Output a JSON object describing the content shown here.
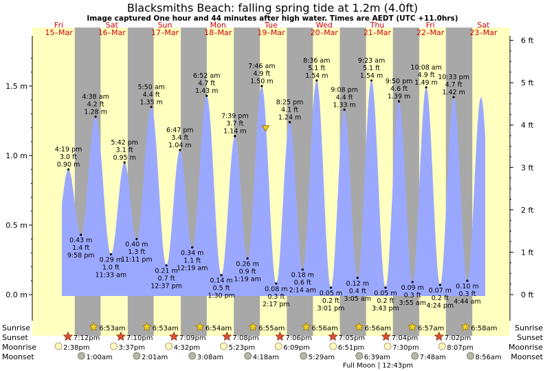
{
  "title": "Blacksmiths Beach: falling  spring tide at 1.2m (4.0ft)",
  "subtitle": "Image captured One hour and 44 minutes after high water. Times are AEDT (UTC +11.0hrs)",
  "colors": {
    "day_bg": "#ffffc0",
    "night_bg": "#a8a8a8",
    "tide_fill": "#9aa8ff",
    "day_label": "#d00000",
    "sunrise": "#f0d020",
    "sunset": "#e05030",
    "moonrise": "#fff8c0",
    "moonset": "#b8b8a8"
  },
  "chart_data": {
    "type": "area",
    "title": "Blacksmiths Beach: falling  spring tide at 1.2m (4.0ft)",
    "x_unit": "hours after Fri 15-Mar 00:00 AEDT",
    "x_range": [
      0,
      216
    ],
    "y_left": {
      "unit": "m",
      "range": [
        -0.15,
        1.8
      ],
      "ticks": [
        0.0,
        0.5,
        1.0,
        1.5
      ],
      "tick_labels": [
        "0.0 m",
        "0.5 m",
        "1.0 m",
        "1.5 m"
      ]
    },
    "y_right": {
      "unit": "ft",
      "ticks": [
        0,
        1,
        2,
        3,
        4,
        5,
        6
      ],
      "tick_labels": [
        "0 ft",
        "1 ft",
        "2 ft",
        "3 ft",
        "4 ft",
        "5 ft",
        "6 ft"
      ]
    },
    "days": [
      {
        "name": "Fri",
        "date": "15–Mar",
        "hour": 0
      },
      {
        "name": "Sat",
        "date": "16–Mar",
        "hour": 24
      },
      {
        "name": "Sun",
        "date": "17–Mar",
        "hour": 48
      },
      {
        "name": "Mon",
        "date": "18–Mar",
        "hour": 72
      },
      {
        "name": "Tue",
        "date": "19–Mar",
        "hour": 96
      },
      {
        "name": "Wed",
        "date": "20–Mar",
        "hour": 120
      },
      {
        "name": "Thu",
        "date": "21–Mar",
        "hour": 144
      },
      {
        "name": "Fri",
        "date": "22–Mar",
        "hour": 168
      },
      {
        "name": "Sat",
        "date": "23–Mar",
        "hour": 192
      }
    ],
    "extrema": [
      {
        "hour": 16.32,
        "m": 0.9,
        "time": "4:19 pm",
        "ft": "3.0 ft",
        "ht": "0.90 m",
        "type": "high"
      },
      {
        "hour": 21.97,
        "m": 0.43,
        "time": "9:58 pm",
        "ft": "1.4 ft",
        "ht": "0.43 m",
        "type": "low"
      },
      {
        "hour": 28.63,
        "m": 1.28,
        "time": "4:38 am",
        "ft": "4.2 ft",
        "ht": "1.28 m",
        "type": "high"
      },
      {
        "hour": 35.55,
        "m": 0.29,
        "time": "11:33 am",
        "ft": "1.0 ft",
        "ht": "0.29 m",
        "type": "low"
      },
      {
        "hour": 41.7,
        "m": 0.95,
        "time": "5:42 pm",
        "ft": "3.1 ft",
        "ht": "0.95 m",
        "type": "high"
      },
      {
        "hour": 47.18,
        "m": 0.4,
        "time": "11:11 pm",
        "ft": "1.3 ft",
        "ht": "0.40 m",
        "type": "low"
      },
      {
        "hour": 53.83,
        "m": 1.35,
        "time": "5:50 am",
        "ft": "4.4 ft",
        "ht": "1.35 m",
        "type": "high"
      },
      {
        "hour": 60.62,
        "m": 0.21,
        "time": "12:37 pm",
        "ft": "0.7 ft",
        "ht": "0.21 m",
        "type": "low"
      },
      {
        "hour": 66.78,
        "m": 1.04,
        "time": "6:47 pm",
        "ft": "3.4 ft",
        "ht": "1.04 m",
        "type": "high"
      },
      {
        "hour": 72.32,
        "m": 0.34,
        "time": "12:19 am",
        "ft": "1.1 ft",
        "ht": "0.34 m",
        "type": "low"
      },
      {
        "hour": 78.87,
        "m": 1.43,
        "time": "6:52 am",
        "ft": "4.7 ft",
        "ht": "1.43 m",
        "type": "high"
      },
      {
        "hour": 85.5,
        "m": 0.14,
        "time": "1:30 pm",
        "ft": "0.5 ft",
        "ht": "0.14 m",
        "type": "low"
      },
      {
        "hour": 91.65,
        "m": 1.14,
        "time": "7:39 pm",
        "ft": "3.7 ft",
        "ht": "1.14 m",
        "type": "high"
      },
      {
        "hour": 97.32,
        "m": 0.26,
        "time": "1:19 am",
        "ft": "0.9 ft",
        "ht": "0.26 m",
        "type": "low"
      },
      {
        "hour": 103.77,
        "m": 1.5,
        "time": "7:46 am",
        "ft": "4.9 ft",
        "ht": "1.50 m",
        "type": "high"
      },
      {
        "hour": 110.28,
        "m": 0.08,
        "time": "2:17 pm",
        "ft": "0.3 ft",
        "ht": "0.08 m",
        "type": "low"
      },
      {
        "hour": 116.42,
        "m": 1.24,
        "time": "8:25 pm",
        "ft": "4.1 ft",
        "ht": "1.24 m",
        "type": "high"
      },
      {
        "hour": 122.23,
        "m": 0.18,
        "time": "2:14 am",
        "ft": "0.6 ft",
        "ht": "0.18 m",
        "type": "low"
      },
      {
        "hour": 128.6,
        "m": 1.54,
        "time": "8:36 am",
        "ft": "5.1 ft",
        "ht": "1.54 m",
        "type": "high"
      },
      {
        "hour": 135.02,
        "m": 0.05,
        "time": "3:01 pm",
        "ft": "0.2 ft",
        "ht": "0.05 m",
        "type": "low"
      },
      {
        "hour": 141.13,
        "m": 1.33,
        "time": "9:08 pm",
        "ft": "4.4 ft",
        "ht": "1.33 m",
        "type": "high"
      },
      {
        "hour": 147.08,
        "m": 0.12,
        "time": "3:05 am",
        "ft": "0.4 ft",
        "ht": "0.12 m",
        "type": "low"
      },
      {
        "hour": 153.38,
        "m": 1.54,
        "time": "9:23 am",
        "ft": "5.1 ft",
        "ht": "1.54 m",
        "type": "high"
      },
      {
        "hour": 159.72,
        "m": 0.05,
        "time": "3:43 pm",
        "ft": "0.2 ft",
        "ht": "0.05 m",
        "type": "low"
      },
      {
        "hour": 165.83,
        "m": 1.39,
        "time": "9:50 pm",
        "ft": "4.6 ft",
        "ht": "1.39 m",
        "type": "high"
      },
      {
        "hour": 171.92,
        "m": 0.09,
        "time": "3:55 am",
        "ft": "0.3 ft",
        "ht": "0.09 m",
        "type": "low"
      },
      {
        "hour": 178.13,
        "m": 1.49,
        "time": "10:08 am",
        "ft": "4.9 ft",
        "ht": "1.49 m",
        "type": "high"
      },
      {
        "hour": 184.4,
        "m": 0.07,
        "time": "4:24 pm",
        "ft": "0.2 ft",
        "ht": "0.07 m",
        "type": "low"
      },
      {
        "hour": 190.55,
        "m": 1.42,
        "time": "10:33 pm",
        "ft": "4.7 ft",
        "ht": "1.42 m",
        "type": "high"
      },
      {
        "hour": 196.73,
        "m": 0.1,
        "time": "4:44 am",
        "ft": "0.3 ft",
        "ht": "0.10 m",
        "type": "low"
      }
    ],
    "current": {
      "hour": 105.5,
      "m": 1.2,
      "state": "falling"
    },
    "sunrise": [
      {
        "hour": 30.88,
        "label": "6:53am"
      },
      {
        "hour": 54.88,
        "label": "6:53am"
      },
      {
        "hour": 78.9,
        "label": "6:54am"
      },
      {
        "hour": 102.92,
        "label": "6:55am"
      },
      {
        "hour": 126.93,
        "label": "6:56am"
      },
      {
        "hour": 150.93,
        "label": "6:56am"
      },
      {
        "hour": 174.95,
        "label": "6:57am"
      },
      {
        "hour": 198.97,
        "label": "6:58am"
      }
    ],
    "sunset": [
      {
        "hour": 19.2,
        "label": "7:12pm"
      },
      {
        "hour": 43.17,
        "label": "7:10pm"
      },
      {
        "hour": 67.15,
        "label": "7:09pm"
      },
      {
        "hour": 91.13,
        "label": "7:08pm"
      },
      {
        "hour": 115.1,
        "label": "7:06pm"
      },
      {
        "hour": 139.08,
        "label": "7:05pm"
      },
      {
        "hour": 163.07,
        "label": "7:04pm"
      },
      {
        "hour": 187.03,
        "label": "7:02pm"
      }
    ],
    "moonrise": [
      {
        "hour": 14.63,
        "label": "2:38pm"
      },
      {
        "hour": 39.62,
        "label": "3:37pm"
      },
      {
        "hour": 64.53,
        "label": "4:32pm"
      },
      {
        "hour": 89.38,
        "label": "5:23pm"
      },
      {
        "hour": 114.15,
        "label": "6:09pm"
      },
      {
        "hour": 138.85,
        "label": "6:51pm"
      },
      {
        "hour": 163.5,
        "label": "7:30pm"
      },
      {
        "hour": 188.12,
        "label": "8:07pm"
      }
    ],
    "moonset": [
      {
        "hour": 25.0,
        "label": "1:00am"
      },
      {
        "hour": 50.02,
        "label": "2:01am"
      },
      {
        "hour": 75.13,
        "label": "3:08am"
      },
      {
        "hour": 100.3,
        "label": "4:18am"
      },
      {
        "hour": 125.48,
        "label": "5:29am"
      },
      {
        "hour": 150.65,
        "label": "6:39am"
      },
      {
        "hour": 175.8,
        "label": "7:48am"
      },
      {
        "hour": 200.93,
        "label": "8:56am"
      }
    ],
    "full_moon": {
      "hour": 156.72,
      "label": "Full Moon",
      "time": "12:43pm"
    }
  },
  "rows": {
    "sunrise": "Sunrise",
    "sunset": "Sunset",
    "moonrise": "Moonrise",
    "moonset": "Moonset"
  }
}
